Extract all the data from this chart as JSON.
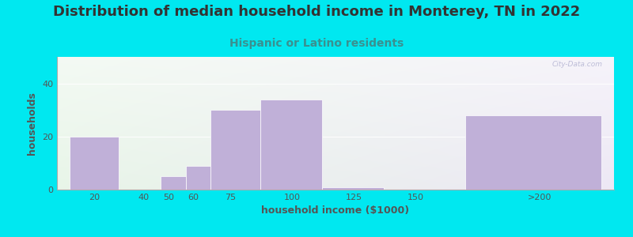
{
  "title": "Distribution of median household income in Monterey, TN in 2022",
  "subtitle": "Hispanic or Latino residents",
  "xlabel": "household income ($1000)",
  "ylabel": "households",
  "bar_color": "#c0b0d8",
  "background_outer": "#00e8f0",
  "categories": [
    "20",
    "40",
    "50",
    "60",
    "75",
    "100",
    "125",
    "150",
    ">200"
  ],
  "values": [
    20,
    0,
    5,
    9,
    30,
    34,
    1,
    0,
    28
  ],
  "bar_lefts": [
    10,
    30,
    47,
    57,
    67,
    87,
    112,
    137,
    170
  ],
  "bar_widths": [
    20,
    17,
    10,
    10,
    20,
    25,
    25,
    25,
    55
  ],
  "xtick_labels": [
    "20",
    "40",
    "50",
    "60",
    "75",
    "100",
    "125",
    "150",
    ">200"
  ],
  "xtick_positions": [
    20,
    40,
    50,
    60,
    75,
    100,
    125,
    150,
    200
  ],
  "ytick_positions": [
    0,
    20,
    40
  ],
  "ylim": [
    0,
    50
  ],
  "xlim": [
    5,
    230
  ],
  "title_fontsize": 13,
  "subtitle_fontsize": 10,
  "axis_label_fontsize": 9,
  "tick_fontsize": 8,
  "title_color": "#333333",
  "subtitle_color": "#3a9090",
  "watermark": "City-Data.com"
}
